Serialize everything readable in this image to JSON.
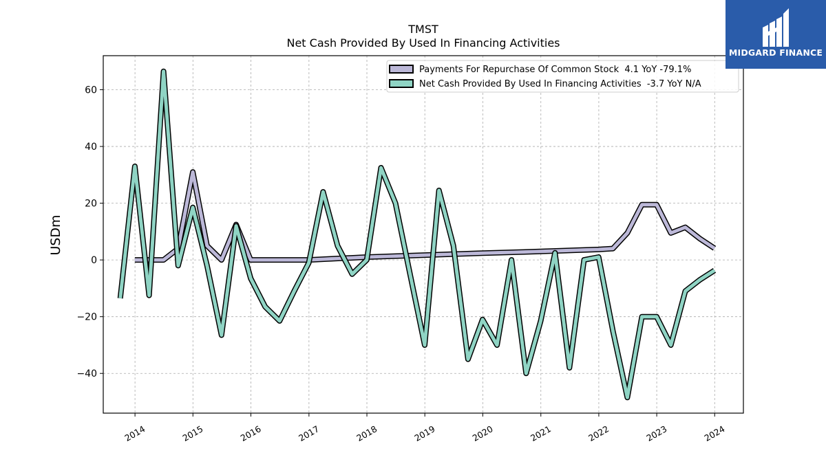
{
  "chart_data": {
    "type": "line",
    "title": "TMST",
    "subtitle": "Net Cash Provided By Used In Financing Activities",
    "ylabel": "USDm",
    "xlabel": "",
    "xlim": [
      "2013-06-15",
      "2024-06-30"
    ],
    "ylim": [
      -54,
      72
    ],
    "yticks": [
      60,
      40,
      20,
      0,
      -20,
      -40
    ],
    "ytick_labels": [
      "60",
      "40",
      "20",
      "0",
      "−20",
      "−40"
    ],
    "xticks": [
      "2014-01-01",
      "2015-01-01",
      "2016-01-01",
      "2017-01-01",
      "2018-01-01",
      "2019-01-01",
      "2020-01-01",
      "2021-01-01",
      "2022-01-01",
      "2023-01-01",
      "2024-01-01"
    ],
    "xtick_labels": [
      "2014",
      "2015",
      "2016",
      "2017",
      "2018",
      "2019",
      "2020",
      "2021",
      "2022",
      "2023",
      "2024"
    ],
    "grid": true,
    "legend_position": "top-right",
    "series": [
      {
        "name": "Payments For Repurchase Of Common Stock  4.1 YoY -79.1%",
        "color": "#bcb8d8",
        "points": [
          [
            "2013-12-31",
            0
          ],
          [
            "2014-03-31",
            0
          ],
          [
            "2014-06-30",
            0
          ],
          [
            "2014-09-30",
            4
          ],
          [
            "2014-12-31",
            31
          ],
          [
            "2015-03-31",
            5
          ],
          [
            "2015-06-30",
            0
          ],
          [
            "2015-09-30",
            12.5
          ],
          [
            "2015-12-31",
            0
          ],
          [
            "2016-12-31",
            0
          ],
          [
            "2017-12-31",
            1
          ],
          [
            "2018-12-31",
            1.7
          ],
          [
            "2019-12-31",
            2.4
          ],
          [
            "2020-12-31",
            3
          ],
          [
            "2021-12-31",
            3.7
          ],
          [
            "2022-03-31",
            4
          ],
          [
            "2022-06-30",
            9.5
          ],
          [
            "2022-09-30",
            19.5
          ],
          [
            "2022-12-31",
            19.5
          ],
          [
            "2023-03-31",
            9.5
          ],
          [
            "2023-06-30",
            11.5
          ],
          [
            "2023-09-30",
            7.5
          ],
          [
            "2023-12-31",
            4.1
          ]
        ]
      },
      {
        "name": "Net Cash Provided By Used In Financing Activities  -3.7 YoY N/A",
        "color": "#8fd4c4",
        "points": [
          [
            "2013-09-30",
            -13.5
          ],
          [
            "2013-12-31",
            33
          ],
          [
            "2014-03-31",
            -12.5
          ],
          [
            "2014-06-30",
            66.5
          ],
          [
            "2014-09-30",
            -2
          ],
          [
            "2014-12-31",
            18.5
          ],
          [
            "2015-03-31",
            -2
          ],
          [
            "2015-06-30",
            -26.5
          ],
          [
            "2015-09-30",
            12
          ],
          [
            "2015-12-31",
            -6.5
          ],
          [
            "2016-03-31",
            -16.5
          ],
          [
            "2016-06-30",
            -21.5
          ],
          [
            "2016-09-30",
            -11
          ],
          [
            "2016-12-31",
            -1
          ],
          [
            "2017-03-31",
            24
          ],
          [
            "2017-06-30",
            5
          ],
          [
            "2017-09-30",
            -5
          ],
          [
            "2017-12-31",
            0
          ],
          [
            "2018-03-31",
            32.5
          ],
          [
            "2018-06-30",
            20
          ],
          [
            "2018-09-30",
            -5
          ],
          [
            "2018-12-31",
            -30
          ],
          [
            "2019-03-31",
            24.5
          ],
          [
            "2019-06-30",
            5
          ],
          [
            "2019-09-30",
            -35
          ],
          [
            "2019-12-31",
            -21
          ],
          [
            "2020-03-31",
            -30
          ],
          [
            "2020-06-30",
            0
          ],
          [
            "2020-09-30",
            -40
          ],
          [
            "2020-12-31",
            -21.5
          ],
          [
            "2021-03-31",
            2.5
          ],
          [
            "2021-06-30",
            -38
          ],
          [
            "2021-09-30",
            0
          ],
          [
            "2021-12-31",
            1
          ],
          [
            "2022-03-31",
            -25
          ],
          [
            "2022-06-30",
            -48.5
          ],
          [
            "2022-09-30",
            -20
          ],
          [
            "2022-12-31",
            -20
          ],
          [
            "2023-03-31",
            -30
          ],
          [
            "2023-06-30",
            -11
          ],
          [
            "2023-09-30",
            -7
          ],
          [
            "2023-12-31",
            -3.7
          ]
        ]
      }
    ]
  },
  "logo": {
    "text": "MIDGARD FINANCE",
    "icon": "midgard-finance-logo-icon"
  }
}
